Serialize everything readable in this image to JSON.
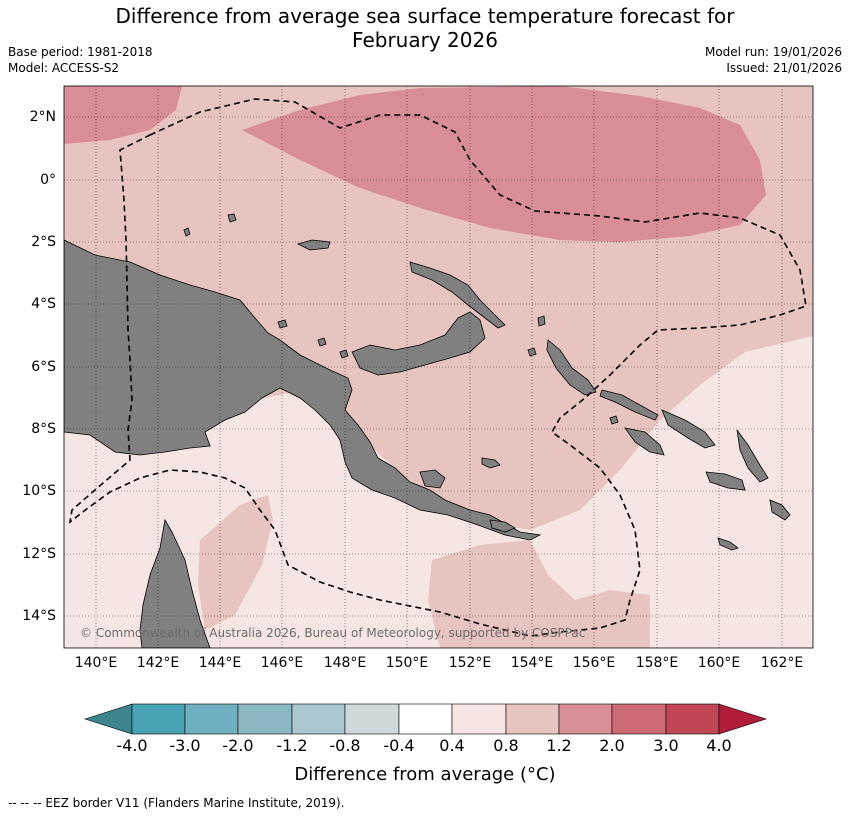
{
  "title_line1": "Difference from average sea surface temperature forecast for",
  "title_line2": "February 2026",
  "base_period": "Base period: 1981-2018",
  "model": "Model: ACCESS-S2",
  "model_run": "Model run: 19/01/2026",
  "issued": "Issued: 21/01/2026",
  "lat_labels": [
    "2°N",
    "0°",
    "2°S",
    "4°S",
    "6°S",
    "8°S",
    "10°S",
    "12°S",
    "14°S"
  ],
  "lon_labels": [
    "140°E",
    "142°E",
    "144°E",
    "146°E",
    "148°E",
    "150°E",
    "152°E",
    "154°E",
    "156°E",
    "158°E",
    "160°E",
    "162°E"
  ],
  "copyright": "© Commonwealth of Australia 2026, Bureau of Meteorology, supported by COSPPac",
  "colorbar": {
    "labels": [
      "-4.0",
      "-3.0",
      "-2.0",
      "-1.2",
      "-0.8",
      "-0.4",
      "0.4",
      "0.8",
      "1.2",
      "2.0",
      "3.0",
      "4.0"
    ],
    "colors": [
      "#3d8690",
      "#4aa3b5",
      "#6eb0bf",
      "#8cb8c3",
      "#a9c7cc",
      "#cfd8da",
      "#ffffff",
      "#f5e6e4",
      "#e8c4c1",
      "#d98e97",
      "#cc6a76",
      "#c04655",
      "#b01c3a"
    ],
    "title": "Difference from average (°C)"
  },
  "legend_eez": "--  --  -- EEZ border V11 (Flanders Marine Institute, 2019).",
  "colors": {
    "land": "#808080",
    "anomaly_0_4_to_0_8": "#f5e6e4",
    "anomaly_0_8_to_1_2": "#e8c4c1",
    "anomaly_1_2_to_2_0": "#d98e97"
  }
}
